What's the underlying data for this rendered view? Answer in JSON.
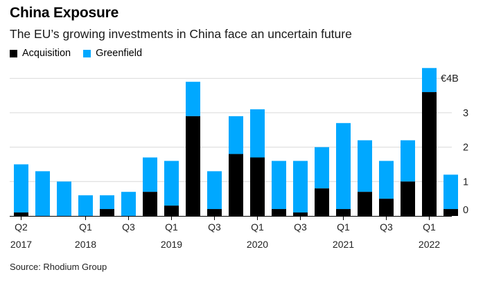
{
  "header": {
    "title": "China Exposure",
    "subtitle": "The EU’s growing investments in China face an uncertain future"
  },
  "legend": [
    {
      "label": "Acquisition",
      "color": "#000000"
    },
    {
      "label": "Greenfield",
      "color": "#00a8ff"
    }
  ],
  "footer": {
    "source": "Source: Rhodium Group"
  },
  "chart_data": {
    "type": "bar",
    "stacked": true,
    "title": "China Exposure",
    "subtitle": "The EU’s growing investments in China face an uncertain future",
    "xlabel": "",
    "ylabel": "",
    "ylim": [
      0,
      4.3
    ],
    "y_ticks": [
      0,
      1,
      2,
      3,
      4
    ],
    "y_tick_labels": [
      "0",
      "1",
      "2",
      "3",
      "€4B"
    ],
    "y_axis_position": "right",
    "grid": true,
    "legend_position": "top-left",
    "categories": [
      "Q2 2017",
      "Q3 2017",
      "Q4 2017",
      "Q1 2018",
      "Q2 2018",
      "Q3 2018",
      "Q4 2018",
      "Q1 2019",
      "Q2 2019",
      "Q3 2019",
      "Q4 2019",
      "Q1 2020",
      "Q2 2020",
      "Q3 2020",
      "Q4 2020",
      "Q1 2021",
      "Q2 2021",
      "Q3 2021",
      "Q4 2021",
      "Q1 2022",
      "Q2 2022"
    ],
    "x_tick_labels": [
      {
        "index": 0,
        "line1": "Q2",
        "line2": "2017"
      },
      {
        "index": 3,
        "line1": "Q1",
        "line2": "2018"
      },
      {
        "index": 5,
        "line1": "Q3",
        "line2": ""
      },
      {
        "index": 7,
        "line1": "Q1",
        "line2": "2019"
      },
      {
        "index": 9,
        "line1": "Q3",
        "line2": ""
      },
      {
        "index": 11,
        "line1": "Q1",
        "line2": "2020"
      },
      {
        "index": 13,
        "line1": "Q3",
        "line2": ""
      },
      {
        "index": 15,
        "line1": "Q1",
        "line2": "2021"
      },
      {
        "index": 17,
        "line1": "Q3",
        "line2": ""
      },
      {
        "index": 19,
        "line1": "Q1",
        "line2": "2022"
      }
    ],
    "series": [
      {
        "name": "Acquisition",
        "color": "#000000",
        "values": [
          0.1,
          0.0,
          0.0,
          0.0,
          0.2,
          0.0,
          0.7,
          0.3,
          2.9,
          0.2,
          1.8,
          1.7,
          0.2,
          0.1,
          0.8,
          0.2,
          0.7,
          0.5,
          1.0,
          3.6,
          0.2
        ]
      },
      {
        "name": "Greenfield",
        "color": "#00a8ff",
        "values": [
          1.4,
          1.3,
          1.0,
          0.6,
          0.4,
          0.7,
          1.0,
          1.3,
          1.0,
          1.1,
          1.1,
          1.4,
          1.4,
          1.5,
          1.2,
          2.5,
          1.5,
          1.1,
          1.2,
          0.7,
          1.0
        ]
      }
    ]
  }
}
